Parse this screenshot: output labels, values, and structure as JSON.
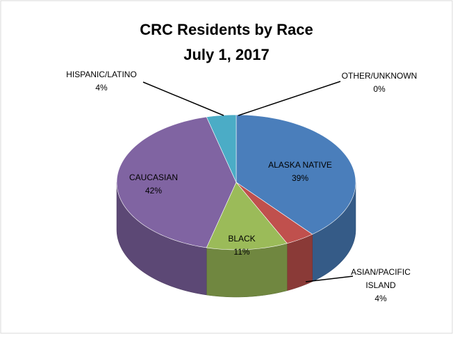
{
  "chart_data": {
    "type": "pie",
    "title": "CRC Residents by Race",
    "subtitle": "July 1, 2017",
    "categories": [
      "ALASKA NATIVE",
      "ASIAN/PACIFIC ISLAND",
      "BLACK",
      "CAUCASIAN",
      "HISPANIC/LATINO",
      "OTHER/UNKNOWN"
    ],
    "values": [
      39,
      4,
      11,
      42,
      4,
      0
    ],
    "value_labels": [
      "39%",
      "4%",
      "11%",
      "42%",
      "4%",
      "0%"
    ],
    "colors": [
      "#4a7ebb",
      "#c0504d",
      "#9bbb59",
      "#8064a2",
      "#4bacc6",
      "#f79646"
    ]
  }
}
